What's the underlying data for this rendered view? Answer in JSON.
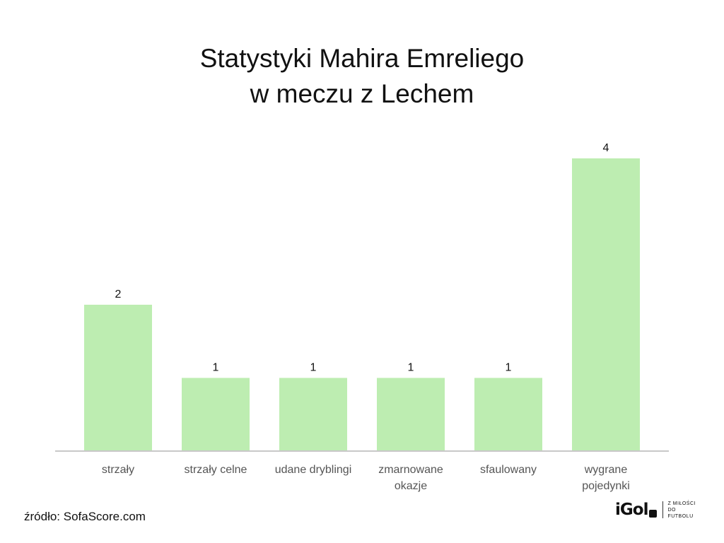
{
  "title_line1": "Statystyki Mahira Emreliego",
  "title_line2": "w meczu z Lechem",
  "source": "źródło: SofaScore.com",
  "logo": {
    "word": "iGol",
    "tagline_line1": "Z MIŁOŚCI",
    "tagline_line2": "DO FUTBOLU"
  },
  "colors": {
    "bar": "#bdedb1",
    "axis": "#c8c8c8",
    "category_text": "#555555",
    "value_text": "#111111"
  },
  "chart_data": {
    "type": "bar",
    "categories": [
      [
        "strzały"
      ],
      [
        "strzały celne"
      ],
      [
        "udane dryblingi"
      ],
      [
        "zmarnowane",
        "okazje"
      ],
      [
        "sfaulowany"
      ],
      [
        "wygrane",
        "pojedynki"
      ]
    ],
    "values": [
      2,
      1,
      1,
      1,
      1,
      4
    ],
    "data_labels": [
      "2",
      "1",
      "1",
      "1",
      "1",
      "4"
    ],
    "ylim": [
      0,
      4
    ],
    "grid": false,
    "legend": "none"
  }
}
